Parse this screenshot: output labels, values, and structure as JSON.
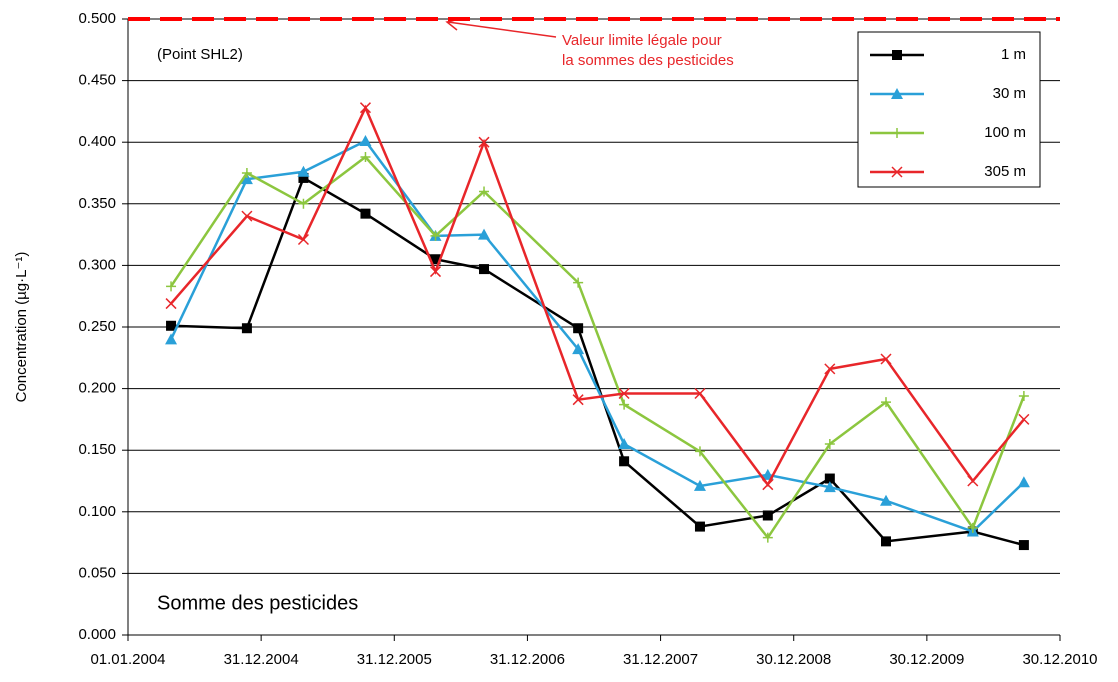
{
  "chart_data": {
    "type": "line",
    "y_label": "Concentration  (µg·L⁻¹)",
    "annotations": [
      "(Point SHL2)",
      "Somme des pesticides"
    ],
    "reference_line": {
      "value": 0.5,
      "color": "#ff0000",
      "label": [
        "Valeur limite légale pour",
        "la sommes des pesticides"
      ]
    },
    "x": [
      "2004-04-28",
      "2004-11-22",
      "2005-04-26",
      "2005-10-13",
      "2006-04-23",
      "2006-09-03",
      "2007-05-19",
      "2007-09-22",
      "2008-04-17",
      "2008-10-20",
      "2009-04-08",
      "2009-09-09",
      "2010-05-05",
      "2010-09-22"
    ],
    "xlim": [
      "2004-01-01",
      "2010-12-30"
    ],
    "xticks": [
      {
        "value": "2004-01-01",
        "label": "01.01.2004"
      },
      {
        "value": "2004-12-31",
        "label": "31.12.2004"
      },
      {
        "value": "2005-12-31",
        "label": "31.12.2005"
      },
      {
        "value": "2006-12-31",
        "label": "31.12.2006"
      },
      {
        "value": "2007-12-31",
        "label": "31.12.2007"
      },
      {
        "value": "2008-12-30",
        "label": "30.12.2008"
      },
      {
        "value": "2009-12-30",
        "label": "30.12.2009"
      },
      {
        "value": "2010-12-30",
        "label": "30.12.2010"
      }
    ],
    "ylim": [
      0,
      0.5
    ],
    "yticks": [
      {
        "value": 0,
        "label": "0.000"
      },
      {
        "value": 0.05,
        "label": "0.050"
      },
      {
        "value": 0.1,
        "label": "0.100"
      },
      {
        "value": 0.15,
        "label": "0.150"
      },
      {
        "value": 0.2,
        "label": "0.200"
      },
      {
        "value": 0.25,
        "label": "0.250"
      },
      {
        "value": 0.3,
        "label": "0.300"
      },
      {
        "value": 0.35,
        "label": "0.350"
      },
      {
        "value": 0.4,
        "label": "0.400"
      },
      {
        "value": 0.45,
        "label": "0.450"
      },
      {
        "value": 0.5,
        "label": "0.500"
      }
    ],
    "grid": true,
    "legend": "top-right",
    "series": [
      {
        "name": "1 m",
        "color": "#000000",
        "marker": "square",
        "values": [
          0.251,
          0.249,
          0.371,
          0.342,
          0.305,
          0.297,
          0.249,
          0.141,
          0.088,
          0.097,
          0.127,
          0.076,
          0.084,
          0.073
        ]
      },
      {
        "name": "30 m",
        "color": "#2aa0d8",
        "marker": "triangle",
        "values": [
          0.24,
          0.37,
          0.376,
          0.401,
          0.324,
          0.325,
          0.232,
          0.155,
          0.121,
          0.13,
          0.12,
          0.109,
          0.084,
          0.124
        ]
      },
      {
        "name": "100 m",
        "color": "#8cc63f",
        "marker": "plus",
        "values": [
          0.283,
          0.375,
          0.35,
          0.388,
          0.324,
          0.36,
          0.286,
          0.187,
          0.149,
          0.079,
          0.155,
          0.189,
          0.087,
          0.194
        ]
      },
      {
        "name": "305 m",
        "color": "#e8262a",
        "marker": "cross",
        "values": [
          0.269,
          0.34,
          0.321,
          0.428,
          0.295,
          0.4,
          0.191,
          0.196,
          0.196,
          0.122,
          0.216,
          0.224,
          0.125,
          0.175
        ]
      }
    ]
  }
}
